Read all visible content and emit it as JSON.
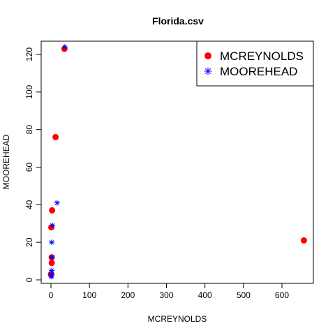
{
  "chart_data": {
    "type": "scatter",
    "title": "Florida.csv",
    "xlabel": "MCREYNOLDS",
    "ylabel": "MOOREHEAD",
    "xlim": [
      -15,
      680
    ],
    "ylim": [
      -2,
      128
    ],
    "xticks": [
      0,
      100,
      200,
      300,
      400,
      500,
      600
    ],
    "yticks": [
      0,
      20,
      40,
      60,
      80,
      100,
      120
    ],
    "grid": false,
    "legend_position": "top-right",
    "series": [
      {
        "name": "MCREYNOLDS",
        "marker": "filled-circle",
        "color": "#ff0000",
        "points": [
          {
            "x": 35,
            "y": 123
          },
          {
            "x": 12,
            "y": 76
          },
          {
            "x": 3,
            "y": 37
          },
          {
            "x": 1,
            "y": 28
          },
          {
            "x": 657,
            "y": 21
          },
          {
            "x": 2,
            "y": 12
          },
          {
            "x": 2,
            "y": 9
          },
          {
            "x": 1,
            "y": 3
          },
          {
            "x": 0,
            "y": 3
          }
        ]
      },
      {
        "name": "MOOREHEAD",
        "marker": "asterisk",
        "color": "#0000ff",
        "points": [
          {
            "x": 36,
            "y": 124
          },
          {
            "x": 16,
            "y": 41
          },
          {
            "x": 4,
            "y": 29
          },
          {
            "x": 2,
            "y": 20
          },
          {
            "x": 2,
            "y": 12
          },
          {
            "x": 2,
            "y": 5
          },
          {
            "x": 1,
            "y": 3
          },
          {
            "x": 0,
            "y": 2
          },
          {
            "x": 2,
            "y": 2
          }
        ]
      }
    ]
  }
}
